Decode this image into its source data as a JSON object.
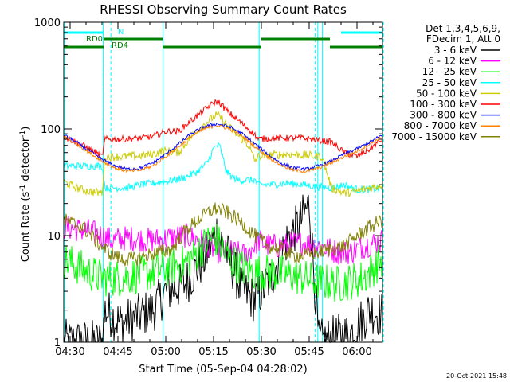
{
  "chart_data": {
    "type": "line",
    "title": "RHESSI Observing Summary Count Rates",
    "xlabel": "Start Time (05-Sep-04 04:28:02)",
    "ylabel_main": "Count Rate (s",
    "ylabel_sup1": "-1",
    "ylabel_mid": " detector",
    "ylabel_sup2": "-1",
    "ylabel_end": ")",
    "y_scale": "log",
    "ylim": [
      1,
      1000
    ],
    "xlim_minutes": [
      0,
      100
    ],
    "x_ticks": [
      {
        "minute": 2,
        "label": "04:30"
      },
      {
        "minute": 17,
        "label": "04:45"
      },
      {
        "minute": 32,
        "label": "05:00"
      },
      {
        "minute": 47,
        "label": "05:15"
      },
      {
        "minute": 62,
        "label": "05:30"
      },
      {
        "minute": 77,
        "label": "05:45"
      },
      {
        "minute": 92,
        "label": "06:00"
      }
    ],
    "y_ticks": [
      {
        "value": 1,
        "label": "1"
      },
      {
        "value": 10,
        "label": "10"
      },
      {
        "value": 100,
        "label": "100"
      },
      {
        "value": 1000,
        "label": "1000"
      }
    ],
    "legend_header": [
      "Det 1,3,4,5,6,9,",
      "FDecim 1, Att 0"
    ],
    "series": [
      {
        "name": "3 - 6 keV",
        "color": "#000000",
        "points": [
          [
            0,
            1
          ],
          [
            12,
            1
          ],
          [
            13,
            2
          ],
          [
            18,
            1.5
          ],
          [
            28,
            2
          ],
          [
            32,
            3
          ],
          [
            38,
            3.5
          ],
          [
            44,
            6
          ],
          [
            48,
            11
          ],
          [
            52,
            6
          ],
          [
            56,
            3
          ],
          [
            60,
            2.5
          ],
          [
            65,
            4
          ],
          [
            70,
            9
          ],
          [
            74,
            13
          ],
          [
            77,
            20
          ],
          [
            80,
            1
          ],
          [
            90,
            1.2
          ],
          [
            96,
            2
          ],
          [
            100,
            1.8
          ]
        ]
      },
      {
        "name": "6 - 12 keV",
        "color": "#ff00ff",
        "points": [
          [
            0,
            12
          ],
          [
            8,
            11
          ],
          [
            12,
            10
          ],
          [
            15,
            9
          ],
          [
            20,
            9.5
          ],
          [
            28,
            9
          ],
          [
            33,
            9.5
          ],
          [
            38,
            10
          ],
          [
            43,
            9
          ],
          [
            47,
            7.5
          ],
          [
            49,
            7
          ],
          [
            53,
            7
          ],
          [
            57,
            6.5
          ],
          [
            61,
            9
          ],
          [
            65,
            8
          ],
          [
            69,
            8
          ],
          [
            74,
            8.5
          ],
          [
            76,
            8.5
          ],
          [
            80,
            8
          ],
          [
            86,
            7
          ],
          [
            90,
            7
          ],
          [
            94,
            8
          ],
          [
            100,
            9
          ]
        ]
      },
      {
        "name": "12 - 25 keV",
        "color": "#00ff00",
        "points": [
          [
            0,
            6
          ],
          [
            8,
            4.5
          ],
          [
            12,
            4
          ],
          [
            17,
            4
          ],
          [
            28,
            4.5
          ],
          [
            33,
            5
          ],
          [
            38,
            5.5
          ],
          [
            42,
            7
          ],
          [
            47,
            10
          ],
          [
            52,
            6
          ],
          [
            56,
            5
          ],
          [
            60,
            4.5
          ],
          [
            65,
            4.5
          ],
          [
            72,
            4.2
          ],
          [
            78,
            3.8
          ],
          [
            86,
            3.5
          ],
          [
            94,
            4
          ],
          [
            100,
            6
          ]
        ]
      },
      {
        "name": "25 - 50 keV",
        "color": "#00ffff",
        "points": [
          [
            0,
            45
          ],
          [
            12,
            45
          ],
          [
            13,
            28
          ],
          [
            16,
            28
          ],
          [
            20,
            28
          ],
          [
            24,
            30
          ],
          [
            28,
            31
          ],
          [
            31,
            32
          ],
          [
            32,
            32
          ],
          [
            38,
            35
          ],
          [
            42,
            40
          ],
          [
            45,
            48
          ],
          [
            47,
            65
          ],
          [
            48,
            70
          ],
          [
            49,
            68
          ],
          [
            51,
            40
          ],
          [
            53,
            35
          ],
          [
            55,
            33
          ],
          [
            60,
            33
          ],
          [
            61,
            30
          ],
          [
            65,
            30
          ],
          [
            70,
            31
          ],
          [
            75,
            30
          ],
          [
            78,
            29
          ],
          [
            84,
            28
          ],
          [
            88,
            30
          ],
          [
            92,
            27
          ],
          [
            96,
            27
          ],
          [
            100,
            28
          ]
        ]
      },
      {
        "name": "50 - 100 keV",
        "color": "#cccc00",
        "points": [
          [
            0,
            32
          ],
          [
            4,
            28
          ],
          [
            8,
            26
          ],
          [
            12,
            25
          ],
          [
            13,
            55
          ],
          [
            18,
            55
          ],
          [
            24,
            56
          ],
          [
            28,
            58
          ],
          [
            31,
            62
          ],
          [
            32,
            62
          ],
          [
            36,
            60
          ],
          [
            40,
            85
          ],
          [
            44,
            110
          ],
          [
            47,
            130
          ],
          [
            48,
            135
          ],
          [
            49,
            130
          ],
          [
            51,
            110
          ],
          [
            54,
            90
          ],
          [
            58,
            70
          ],
          [
            60,
            50
          ],
          [
            61,
            55
          ],
          [
            65,
            57
          ],
          [
            70,
            58
          ],
          [
            75,
            57
          ],
          [
            78,
            56
          ],
          [
            81,
            55
          ],
          [
            84,
            28
          ],
          [
            88,
            25
          ],
          [
            92,
            26
          ],
          [
            96,
            28
          ],
          [
            100,
            30
          ]
        ]
      },
      {
        "name": "100 - 300 keV",
        "color": "#ff0000",
        "points": [
          [
            0,
            85
          ],
          [
            6,
            70
          ],
          [
            10,
            60
          ],
          [
            12,
            55
          ],
          [
            13,
            80
          ],
          [
            18,
            80
          ],
          [
            24,
            82
          ],
          [
            28,
            85
          ],
          [
            31,
            92
          ],
          [
            32,
            95
          ],
          [
            36,
            95
          ],
          [
            40,
            120
          ],
          [
            44,
            150
          ],
          [
            47,
            175
          ],
          [
            48,
            180
          ],
          [
            49,
            175
          ],
          [
            51,
            150
          ],
          [
            54,
            125
          ],
          [
            58,
            100
          ],
          [
            60,
            88
          ],
          [
            61,
            80
          ],
          [
            65,
            82
          ],
          [
            70,
            82
          ],
          [
            75,
            82
          ],
          [
            78,
            80
          ],
          [
            84,
            75
          ],
          [
            88,
            60
          ],
          [
            92,
            55
          ],
          [
            96,
            65
          ],
          [
            100,
            80
          ]
        ]
      },
      {
        "name": "300 - 800 keV",
        "color": "#0000ff",
        "points": [
          [
            0,
            88
          ],
          [
            4,
            75
          ],
          [
            8,
            62
          ],
          [
            12,
            52
          ],
          [
            16,
            45
          ],
          [
            20,
            42
          ],
          [
            24,
            43
          ],
          [
            28,
            48
          ],
          [
            32,
            58
          ],
          [
            36,
            72
          ],
          [
            40,
            90
          ],
          [
            44,
            105
          ],
          [
            48,
            112
          ],
          [
            52,
            105
          ],
          [
            56,
            90
          ],
          [
            60,
            72
          ],
          [
            64,
            58
          ],
          [
            68,
            48
          ],
          [
            72,
            43
          ],
          [
            76,
            42
          ],
          [
            80,
            45
          ],
          [
            84,
            50
          ],
          [
            88,
            58
          ],
          [
            92,
            65
          ],
          [
            96,
            75
          ],
          [
            100,
            88
          ]
        ]
      },
      {
        "name": "800 - 7000 keV",
        "color": "#ff8000",
        "points": [
          [
            0,
            85
          ],
          [
            4,
            72
          ],
          [
            8,
            60
          ],
          [
            12,
            50
          ],
          [
            16,
            43
          ],
          [
            20,
            40
          ],
          [
            24,
            41
          ],
          [
            28,
            45
          ],
          [
            32,
            55
          ],
          [
            36,
            68
          ],
          [
            40,
            85
          ],
          [
            44,
            100
          ],
          [
            48,
            108
          ],
          [
            52,
            100
          ],
          [
            56,
            86
          ],
          [
            60,
            68
          ],
          [
            64,
            55
          ],
          [
            68,
            46
          ],
          [
            72,
            41
          ],
          [
            76,
            40
          ],
          [
            80,
            43
          ],
          [
            84,
            48
          ],
          [
            88,
            55
          ],
          [
            92,
            62
          ],
          [
            96,
            72
          ],
          [
            100,
            85
          ]
        ]
      },
      {
        "name": "7000 - 15000 keV",
        "color": "#808000",
        "points": [
          [
            0,
            14
          ],
          [
            6,
            12
          ],
          [
            10,
            9
          ],
          [
            14,
            7
          ],
          [
            18,
            6
          ],
          [
            22,
            6
          ],
          [
            26,
            6.5
          ],
          [
            30,
            7
          ],
          [
            34,
            7.5
          ],
          [
            38,
            11
          ],
          [
            42,
            14
          ],
          [
            46,
            17
          ],
          [
            48,
            18
          ],
          [
            52,
            16
          ],
          [
            56,
            13
          ],
          [
            60,
            10
          ],
          [
            64,
            8
          ],
          [
            68,
            7.5
          ],
          [
            72,
            6.5
          ],
          [
            76,
            6.5
          ],
          [
            80,
            7
          ],
          [
            84,
            7.5
          ],
          [
            88,
            8
          ],
          [
            92,
            10
          ],
          [
            96,
            12
          ],
          [
            100,
            14
          ]
        ]
      }
    ],
    "state_bars": [
      {
        "label": "N",
        "color": "#00ffff",
        "segments": [
          [
            0,
            12.5
          ],
          [
            87,
            100
          ]
        ]
      },
      {
        "label": "RD0",
        "color": "#008000",
        "segments": [
          [
            12.5,
            31
          ],
          [
            62,
            83.5
          ]
        ]
      },
      {
        "label": "RD4",
        "color": "#008000",
        "segments": [
          [
            0,
            12.5
          ],
          [
            31,
            62
          ],
          [
            83.5,
            100
          ]
        ]
      }
    ],
    "solid_vlines_minutes": [
      0.4,
      12.4,
      31.1,
      61.3,
      79.7,
      81.1
    ],
    "dashed_vlines_minutes": [
      14.8,
      78.9,
      100.3
    ],
    "timestamp": "20-Oct-2021 15:48"
  }
}
